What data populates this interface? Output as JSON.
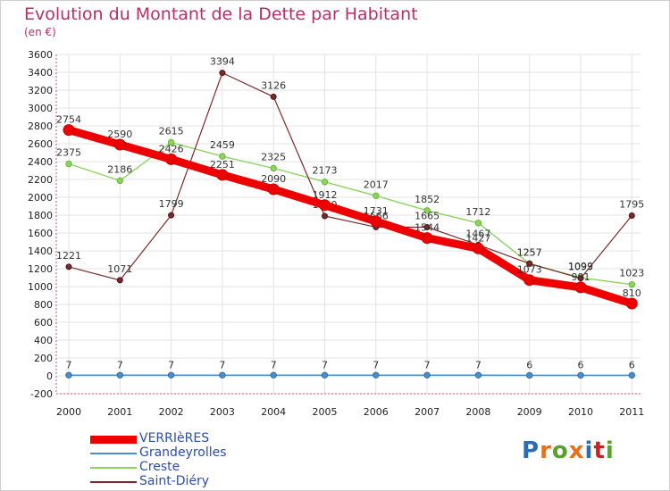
{
  "header": {
    "title": "Evolution du Montant de la Dette par Habitant",
    "subtitle": "(en €)"
  },
  "logo": {
    "text": "Proxiti",
    "letter_colors": [
      "#2e6db4",
      "#e8701a",
      "#5aa02c",
      "#e8701a",
      "#2e6db4",
      "#d21f26",
      "#5aa02c"
    ]
  },
  "chart_data": {
    "type": "line",
    "categories": [
      "2000",
      "2001",
      "2002",
      "2003",
      "2004",
      "2005",
      "2006",
      "2007",
      "2008",
      "2009",
      "2010",
      "2011"
    ],
    "ylim": [
      -200,
      3600
    ],
    "yticks": [
      -200,
      0,
      200,
      400,
      600,
      800,
      1000,
      1200,
      1400,
      1600,
      1800,
      2000,
      2200,
      2400,
      2600,
      2800,
      3000,
      3200,
      3400,
      3600
    ],
    "grid": true,
    "legend_position": "bottom-left",
    "series": [
      {
        "name": "VERRIèRES",
        "color": "#ee0000",
        "values": [
          2754,
          2590,
          2426,
          2251,
          2090,
          1912,
          1731,
          1544,
          1427,
          1073,
          991,
          810
        ]
      },
      {
        "name": "Grandeyrolles",
        "color": "#4a8fc9",
        "values": [
          7,
          7,
          7,
          7,
          7,
          7,
          7,
          7,
          7,
          6,
          6,
          6
        ]
      },
      {
        "name": "Creste",
        "color": "#8bd45e",
        "values": [
          2375,
          2186,
          2615,
          2459,
          2325,
          2173,
          2017,
          1852,
          1712,
          1257,
          1099,
          1023
        ]
      },
      {
        "name": "Saint-Diéry",
        "color": "#7a2a2a",
        "values": [
          1221,
          1071,
          1799,
          3394,
          3126,
          1790,
          1666,
          1665,
          1467,
          1257,
          1093,
          1795
        ]
      }
    ]
  }
}
